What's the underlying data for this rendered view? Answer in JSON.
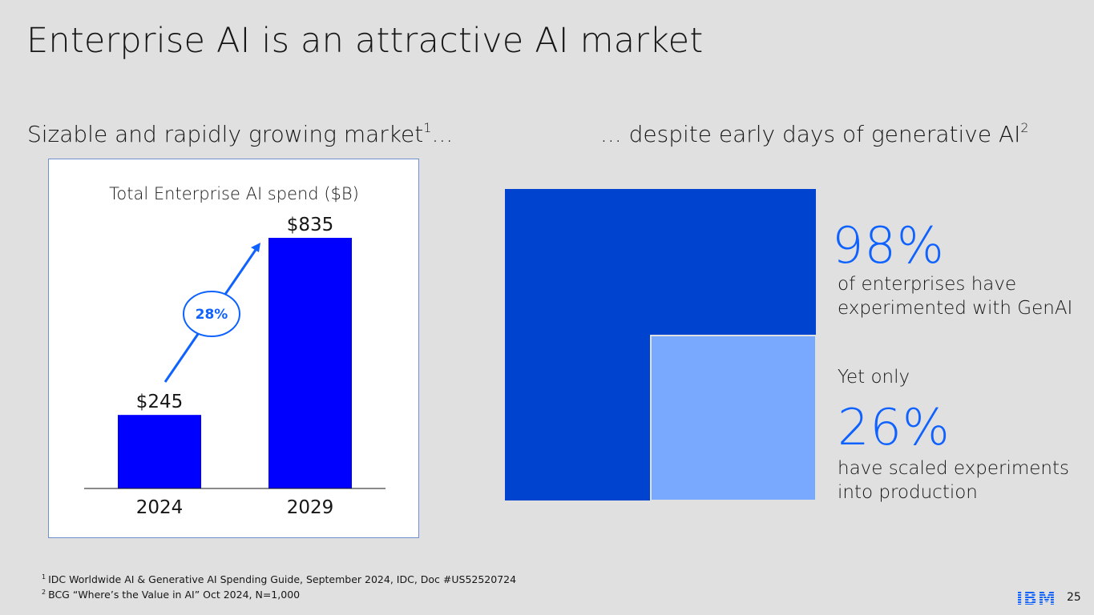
{
  "title": "Enterprise AI is an attractive AI market",
  "left_heading": {
    "text": "Sizable and rapidly growing market",
    "sup": "1",
    "suffix": "..."
  },
  "right_heading": {
    "text": "... despite early days of generative AI",
    "sup": "2"
  },
  "chart_data": {
    "type": "bar",
    "title": "Total Enterprise AI spend ($B)",
    "categories": [
      "2024",
      "2029"
    ],
    "values": [
      245,
      835
    ],
    "value_labels": [
      "$245",
      "$835"
    ],
    "annotation": "28%",
    "ylim": [
      0,
      835
    ],
    "colors": {
      "bar": "#0000ff",
      "arrow": "#0f62fe"
    }
  },
  "stats": {
    "experimented_pct": "98%",
    "experimented_text_line1": "of enterprises have",
    "experimented_text_line2": "experimented with GenAI",
    "yet_only": "Yet only",
    "scaled_pct": "26%",
    "scaled_text_line1": "have scaled experiments",
    "scaled_text_line2": "into production",
    "colors": {
      "outer": "#0043ce",
      "inner": "#78a9ff"
    }
  },
  "footnotes": [
    {
      "marker": "1",
      "text": "IDC Worldwide AI & Generative AI Spending Guide, September 2024, IDC, Doc #US52520724"
    },
    {
      "marker": "2",
      "text": "BCG “Where’s the Value in AI” Oct 2024, N=1,000"
    }
  ],
  "logo": "IBM",
  "page_number": "25"
}
